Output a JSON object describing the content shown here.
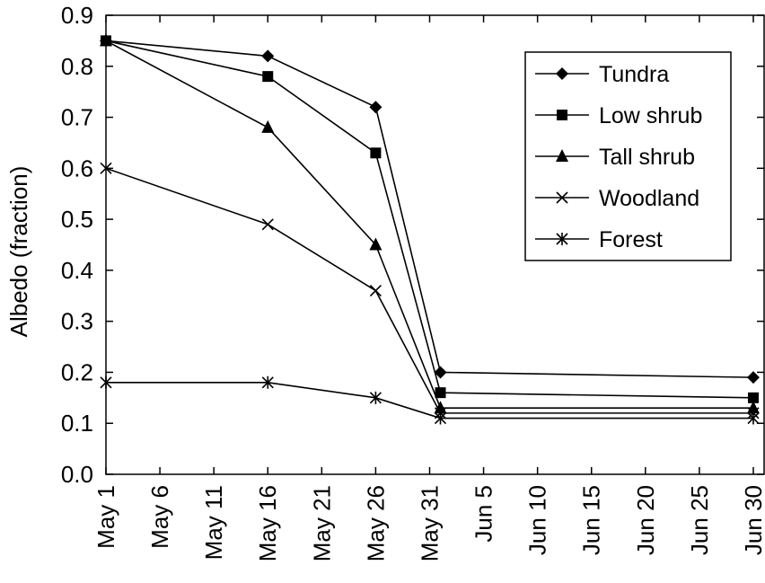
{
  "chart_data": {
    "type": "line",
    "title": "",
    "xlabel": "",
    "ylabel": "Albedo (fraction)",
    "xlim": [
      "May 1",
      "Jun 31"
    ],
    "ylim": [
      0.0,
      0.9
    ],
    "grid": false,
    "legend_position": "top-right",
    "xticks": [
      "May 1",
      "May 6",
      "May 11",
      "May 16",
      "May 21",
      "May 26",
      "May 31",
      "Jun 5",
      "Jun 10",
      "Jun 15",
      "Jun 20",
      "Jun 25",
      "Jun 30"
    ],
    "yticks": [
      "0.0",
      "0.1",
      "0.2",
      "0.3",
      "0.4",
      "0.5",
      "0.6",
      "0.7",
      "0.8",
      "0.9"
    ],
    "x": [
      "May 1",
      "May 16",
      "May 26",
      "Jun 1",
      "Jun 30"
    ],
    "series": [
      {
        "name": "Tundra",
        "marker": "diamond",
        "values": [
          0.85,
          0.82,
          0.72,
          0.2,
          0.19
        ]
      },
      {
        "name": "Low shrub",
        "marker": "square",
        "values": [
          0.85,
          0.78,
          0.63,
          0.16,
          0.15
        ]
      },
      {
        "name": "Tall shrub",
        "marker": "triangle",
        "values": [
          0.85,
          0.68,
          0.45,
          0.13,
          0.13
        ]
      },
      {
        "name": "Woodland",
        "marker": "x",
        "values": [
          0.6,
          0.49,
          0.36,
          0.12,
          0.12
        ]
      },
      {
        "name": "Forest",
        "marker": "asterisk",
        "values": [
          0.18,
          0.18,
          0.15,
          0.11,
          0.11
        ]
      }
    ]
  }
}
